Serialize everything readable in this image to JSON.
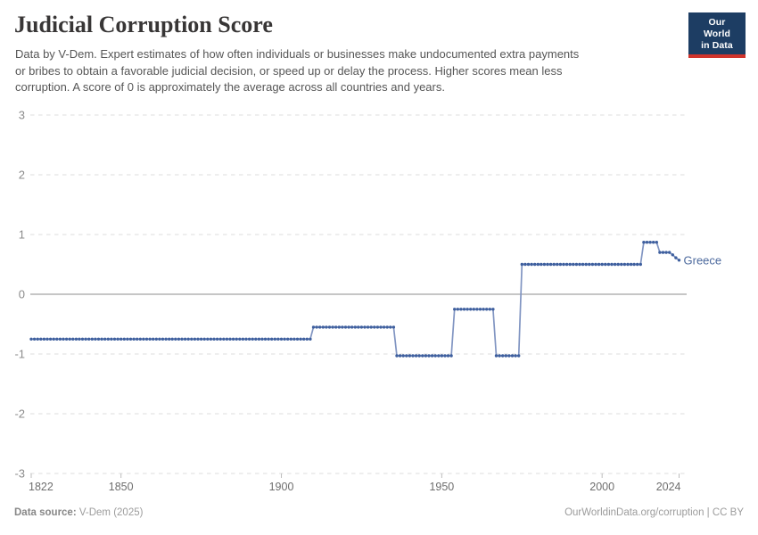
{
  "header": {
    "title": "Judicial Corruption Score",
    "subtitle_lines": [
      "Data by V-Dem. Expert estimates of how often individuals or businesses make undocumented extra payments",
      "or bribes to obtain a favorable judicial decision, or speed up or delay the process. Higher scores mean less",
      "corruption. A score of 0 is approximately the average across all countries and years."
    ],
    "logo": {
      "line1": "Our World",
      "line2": "in Data",
      "bg_color": "#1d3d63",
      "accent_color": "#d0342c"
    }
  },
  "chart_data": {
    "type": "line",
    "title": "Judicial Corruption Score",
    "entity_label": "Greece",
    "x_ticks": [
      1822,
      1850,
      1900,
      1950,
      2000,
      2024
    ],
    "y_ticks": [
      3,
      2,
      1,
      0,
      -1,
      -2,
      -3
    ],
    "x_range": [
      1822,
      2024
    ],
    "y_range": [
      -3,
      3
    ],
    "grid": true,
    "legend_position": "end-of-line",
    "series": [
      {
        "name": "Greece",
        "segments": [
          {
            "from": 1822,
            "to": 1909,
            "value": -0.75
          },
          {
            "from": 1910,
            "to": 1935,
            "value": -0.55
          },
          {
            "from": 1936,
            "to": 1953,
            "value": -1.03
          },
          {
            "from": 1954,
            "to": 1966,
            "value": -0.25
          },
          {
            "from": 1967,
            "to": 1974,
            "value": -1.03
          },
          {
            "from": 1975,
            "to": 2012,
            "value": 0.5
          },
          {
            "from": 2013,
            "to": 2017,
            "value": 0.87
          },
          {
            "from": 2018,
            "to": 2021,
            "value": 0.7
          },
          {
            "from": 2022,
            "to": 2022,
            "value": 0.66
          },
          {
            "from": 2023,
            "to": 2023,
            "value": 0.61
          },
          {
            "from": 2024,
            "to": 2024,
            "value": 0.57
          }
        ],
        "dot_color": "#3e5f9e",
        "line_color": "#8195c2",
        "label_color": "#4d6a9e"
      }
    ],
    "colors": {
      "gridline": "#dcdcdc",
      "zero_line": "#a5a5a5",
      "axis_tick": "#bdbdbd",
      "y_label": "#8c8c8c",
      "x_label": "#6e6e6e"
    }
  },
  "footer": {
    "source_label": "Data source:",
    "source_value": " V-Dem (2025)",
    "attribution": "OurWorldinData.org/corruption | CC BY"
  }
}
